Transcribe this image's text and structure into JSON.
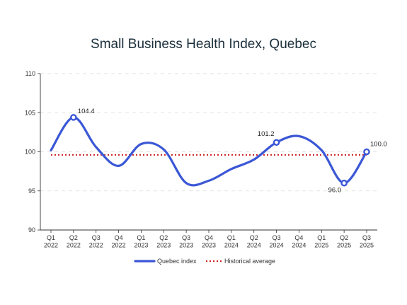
{
  "chart_data": {
    "type": "line",
    "title": "Small Business Health Index, Quebec",
    "xlabel": "",
    "ylabel": "",
    "ylim": [
      90,
      110
    ],
    "yticks": [
      "90",
      "95",
      "100",
      "105",
      "110"
    ],
    "grid": true,
    "legend_position": "bottom",
    "categories": [
      [
        "Q1",
        "2022"
      ],
      [
        "Q2",
        "2022"
      ],
      [
        "Q3",
        "2022"
      ],
      [
        "Q4",
        "2022"
      ],
      [
        "Q1",
        "2023"
      ],
      [
        "Q2",
        "2023"
      ],
      [
        "Q3",
        "2023"
      ],
      [
        "Q4",
        "2023"
      ],
      [
        "Q1",
        "2024"
      ],
      [
        "Q2",
        "2024"
      ],
      [
        "Q3",
        "2024"
      ],
      [
        "Q4",
        "2024"
      ],
      [
        "Q1",
        "2025"
      ],
      [
        "Q2",
        "2025"
      ],
      [
        "Q3",
        "2025"
      ]
    ],
    "series": [
      {
        "name": "Quebec index",
        "color": "#3b57d6",
        "values": [
          100.2,
          104.4,
          100.6,
          98.2,
          101.0,
          100.3,
          96.0,
          96.3,
          97.8,
          99.0,
          101.2,
          102.0,
          100.2,
          96.0,
          100.0
        ],
        "labeled_points": [
          {
            "index": 1,
            "label": "104.4"
          },
          {
            "index": 10,
            "label": "101.2"
          },
          {
            "index": 13,
            "label": "96.0"
          },
          {
            "index": 14,
            "label": "100.0"
          }
        ]
      },
      {
        "name": "Historical average",
        "color": "#cc1f1f",
        "style": "dotted",
        "value": 99.6
      }
    ]
  }
}
